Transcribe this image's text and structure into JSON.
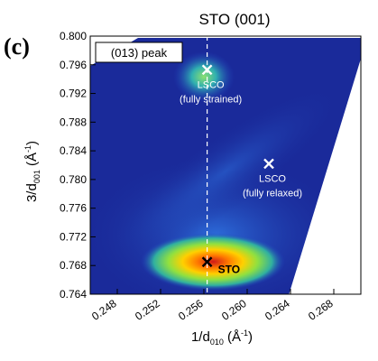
{
  "panel_label": "(c)",
  "chart_data": {
    "type": "heatmap",
    "title": "STO (001)",
    "xlabel": "1/d010 (Å-1)",
    "ylabel": "3/d001 (Å-1)",
    "xlim": [
      0.2455,
      0.2705
    ],
    "ylim": [
      0.764,
      0.8
    ],
    "x_ticks": [
      0.248,
      0.252,
      0.256,
      0.26,
      0.264,
      0.268
    ],
    "x_tick_labels": [
      "0.248",
      "0.252",
      "0.256",
      "0.260",
      "0.264",
      "0.268"
    ],
    "y_ticks": [
      0.764,
      0.768,
      0.772,
      0.776,
      0.78,
      0.784,
      0.788,
      0.792,
      0.796,
      0.8
    ],
    "y_tick_labels": [
      "0.764",
      "0.768",
      "0.772",
      "0.776",
      "0.780",
      "0.784",
      "0.788",
      "0.792",
      "0.796",
      "0.800"
    ],
    "grid": false,
    "legend_box": "(013) peak",
    "reference_line_x": 0.2563,
    "markers": [
      {
        "label_line1": "LSCO",
        "label_line2": "(fully strained)",
        "x": 0.2563,
        "y": 0.7953,
        "color": "#ffffff"
      },
      {
        "label_line1": "LSCO",
        "label_line2": "(fully relaxed)",
        "x": 0.262,
        "y": 0.7822,
        "color": "#ffffff"
      },
      {
        "label_line1": "STO",
        "label_line2": "",
        "x": 0.2563,
        "y": 0.7685,
        "color": "#000000"
      }
    ],
    "colors": {
      "background": "#1a2a9a",
      "low": "#2a58d0",
      "mid": "#38c8a0",
      "high": "#ffd000",
      "peak": "#d01818"
    }
  }
}
